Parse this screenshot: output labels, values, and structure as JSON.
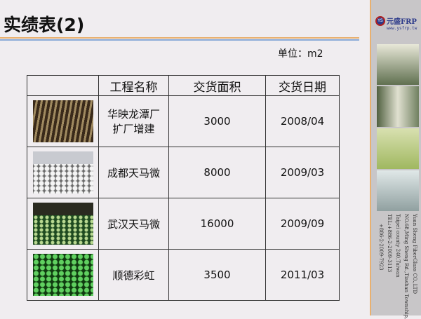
{
  "title": "实绩表(2)",
  "unit": "单位：m2",
  "table": {
    "headers": [
      "",
      "工程名称",
      "交货面积",
      "交货日期"
    ],
    "rows": [
      {
        "name": "华映龙潭厂\n扩厂增建",
        "area": "3000",
        "date": "2008/04"
      },
      {
        "name": "成都天马微",
        "area": "8000",
        "date": "2009/03"
      },
      {
        "name": "武汉天马微",
        "area": "16000",
        "date": "2009/09"
      },
      {
        "name": "顺德彩虹",
        "area": "3500",
        "date": "2011/03"
      }
    ]
  },
  "sidebar": {
    "logo_text": "元盛FRP",
    "logo_mark": "YS",
    "url": "www.ysfrp.tw",
    "address": [
      "Yuan Sheng FiberGlass CO.,LTD",
      "NO.68,Ming Sheng Rd.,Tiashan Township,",
      "Taipei county 240,Taiwan",
      "TEL:+886-2-2009-3113",
      "+886-2-2009-7923"
    ]
  }
}
